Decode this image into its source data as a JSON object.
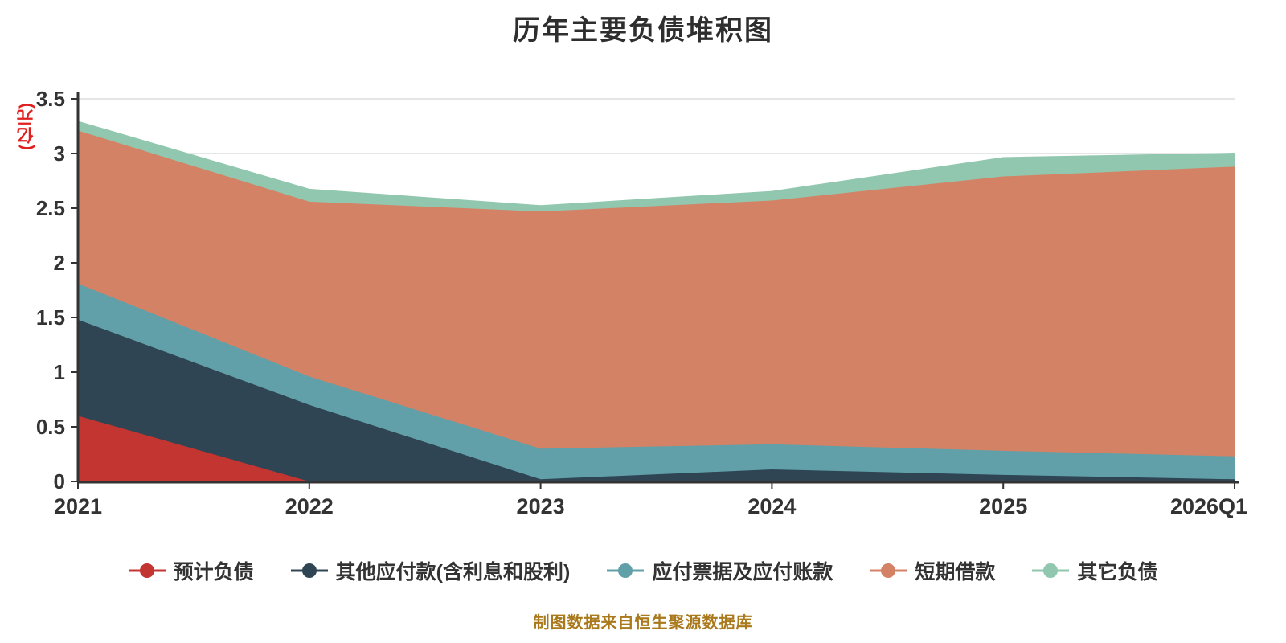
{
  "title": "历年主要负债堆积图",
  "caption": "制图数据来自恒生聚源数据库",
  "y_axis": {
    "name": "(亿元)",
    "name_color": "#e01f1f",
    "ticks": [
      "0",
      "0.5",
      "1",
      "1.5",
      "2",
      "2.5",
      "3",
      "3.5"
    ],
    "min": 0,
    "max": 3.5
  },
  "x_axis": {
    "categories": [
      "2021",
      "2022",
      "2023",
      "2024",
      "2025",
      "2026Q1"
    ]
  },
  "colors": {
    "axis": "#333333",
    "grid": "#cccccc",
    "title": "#2e2e2e",
    "caption": "#a9791b",
    "yaxis_name": "#e01f1f"
  },
  "chart_data": {
    "type": "area",
    "stacked": true,
    "title": "历年主要负债堆积图",
    "ylabel": "(亿元)",
    "xlabel": "",
    "ylim": [
      0,
      3.5
    ],
    "grid": true,
    "legend_position": "bottom",
    "categories": [
      "2021",
      "2022",
      "2023",
      "2024",
      "2025",
      "2026Q1"
    ],
    "series": [
      {
        "name": "预计负债",
        "color": "#c23531",
        "values": [
          0.6,
          0.0,
          0.0,
          0.0,
          0.0,
          0.0
        ]
      },
      {
        "name": "其他应付款(含利息和股利)",
        "color": "#2f4554",
        "values": [
          0.88,
          0.7,
          0.02,
          0.11,
          0.06,
          0.02
        ]
      },
      {
        "name": "应付票据及应付账款",
        "color": "#61a0a8",
        "values": [
          0.33,
          0.26,
          0.28,
          0.23,
          0.22,
          0.21
        ]
      },
      {
        "name": "短期借款",
        "color": "#d48265",
        "values": [
          1.4,
          1.6,
          2.17,
          2.23,
          2.51,
          2.65
        ]
      },
      {
        "name": "其它负债",
        "color": "#91c7ae",
        "values": [
          0.08,
          0.11,
          0.05,
          0.08,
          0.17,
          0.12
        ]
      }
    ]
  }
}
